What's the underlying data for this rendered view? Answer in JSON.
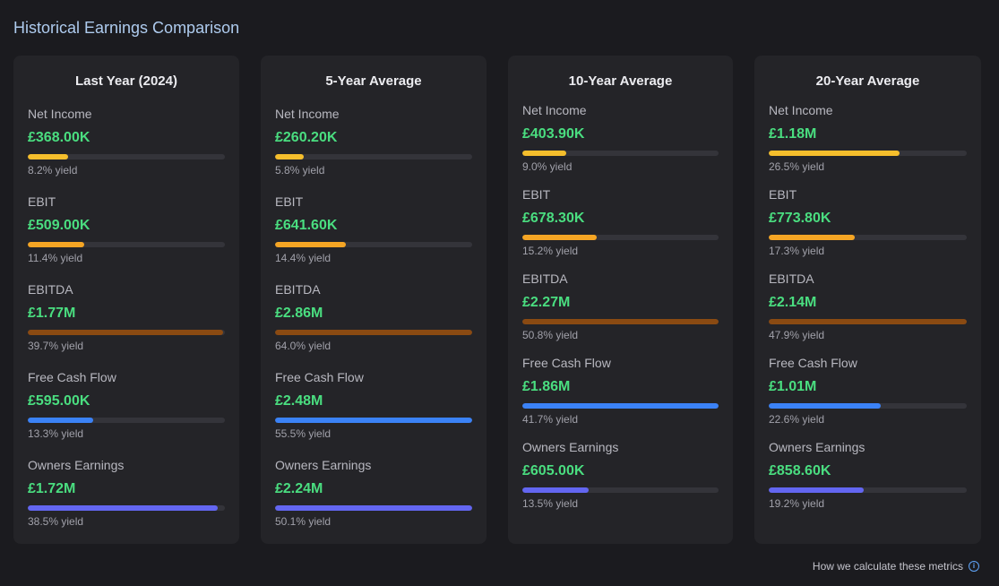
{
  "page": {
    "title": "Historical Earnings Comparison",
    "footer_link": "How we calculate these metrics"
  },
  "colors": {
    "net_income": "#f5be2c",
    "ebit": "#f5a524",
    "ebitda": "#8a4a12",
    "free_cash_flow": "#3b82f6",
    "owners_earnings": "#6366f1",
    "value_green": "#4ade80"
  },
  "cards": [
    {
      "title": "Last Year (2024)",
      "metrics": [
        {
          "label": "Net Income",
          "value": "£368.00K",
          "yield": "8.2% yield",
          "pct": 8.2,
          "color_key": "net_income"
        },
        {
          "label": "EBIT",
          "value": "£509.00K",
          "yield": "11.4% yield",
          "pct": 11.4,
          "color_key": "ebit"
        },
        {
          "label": "EBITDA",
          "value": "£1.77M",
          "yield": "39.7% yield",
          "pct": 39.7,
          "color_key": "ebitda"
        },
        {
          "label": "Free Cash Flow",
          "value": "£595.00K",
          "yield": "13.3% yield",
          "pct": 13.3,
          "color_key": "free_cash_flow"
        },
        {
          "label": "Owners Earnings",
          "value": "£1.72M",
          "yield": "38.5% yield",
          "pct": 38.5,
          "color_key": "owners_earnings"
        }
      ]
    },
    {
      "title": "5-Year Average",
      "metrics": [
        {
          "label": "Net Income",
          "value": "£260.20K",
          "yield": "5.8% yield",
          "pct": 5.8,
          "color_key": "net_income"
        },
        {
          "label": "EBIT",
          "value": "£641.60K",
          "yield": "14.4% yield",
          "pct": 14.4,
          "color_key": "ebit"
        },
        {
          "label": "EBITDA",
          "value": "£2.86M",
          "yield": "64.0% yield",
          "pct": 64.0,
          "color_key": "ebitda"
        },
        {
          "label": "Free Cash Flow",
          "value": "£2.48M",
          "yield": "55.5% yield",
          "pct": 55.5,
          "color_key": "free_cash_flow"
        },
        {
          "label": "Owners Earnings",
          "value": "£2.24M",
          "yield": "50.1% yield",
          "pct": 50.1,
          "color_key": "owners_earnings"
        }
      ]
    },
    {
      "title": "10-Year Average",
      "metrics": [
        {
          "label": "Net Income",
          "value": "£403.90K",
          "yield": "9.0% yield",
          "pct": 9.0,
          "color_key": "net_income"
        },
        {
          "label": "EBIT",
          "value": "£678.30K",
          "yield": "15.2% yield",
          "pct": 15.2,
          "color_key": "ebit"
        },
        {
          "label": "EBITDA",
          "value": "£2.27M",
          "yield": "50.8% yield",
          "pct": 50.8,
          "color_key": "ebitda"
        },
        {
          "label": "Free Cash Flow",
          "value": "£1.86M",
          "yield": "41.7% yield",
          "pct": 41.7,
          "color_key": "free_cash_flow"
        },
        {
          "label": "Owners Earnings",
          "value": "£605.00K",
          "yield": "13.5% yield",
          "pct": 13.5,
          "color_key": "owners_earnings"
        }
      ]
    },
    {
      "title": "20-Year Average",
      "metrics": [
        {
          "label": "Net Income",
          "value": "£1.18M",
          "yield": "26.5% yield",
          "pct": 26.5,
          "color_key": "net_income"
        },
        {
          "label": "EBIT",
          "value": "£773.80K",
          "yield": "17.3% yield",
          "pct": 17.3,
          "color_key": "ebit"
        },
        {
          "label": "EBITDA",
          "value": "£2.14M",
          "yield": "47.9% yield",
          "pct": 47.9,
          "color_key": "ebitda"
        },
        {
          "label": "Free Cash Flow",
          "value": "£1.01M",
          "yield": "22.6% yield",
          "pct": 22.6,
          "color_key": "free_cash_flow"
        },
        {
          "label": "Owners Earnings",
          "value": "£858.60K",
          "yield": "19.2% yield",
          "pct": 19.2,
          "color_key": "owners_earnings"
        }
      ]
    }
  ]
}
